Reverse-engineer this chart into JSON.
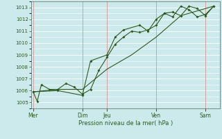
{
  "xlabel": "Pression niveau de la mer( hPa )",
  "bg_color": "#cceaec",
  "grid_color": "#ffffff",
  "line_color": "#2d5a1b",
  "vline_color": "#d4a0a0",
  "ylim": [
    1004.5,
    1013.5
  ],
  "yticks": [
    1005,
    1006,
    1007,
    1008,
    1009,
    1010,
    1011,
    1012,
    1013
  ],
  "day_labels": [
    "Mer",
    "Dim",
    "Jeu",
    "Ven",
    "Sam"
  ],
  "day_positions": [
    0,
    12,
    18,
    30,
    42
  ],
  "xlim": [
    -0.5,
    45.5
  ],
  "series1_x": [
    0,
    1,
    2,
    4,
    6,
    8,
    10,
    12,
    14,
    16,
    18,
    20,
    22,
    24,
    26,
    28,
    30,
    32,
    34,
    36,
    38,
    40,
    42,
    44
  ],
  "series1_y": [
    1005.9,
    1005.1,
    1006.5,
    1006.1,
    1006.1,
    1006.6,
    1006.3,
    1005.7,
    1006.1,
    1007.7,
    1008.8,
    1009.9,
    1010.5,
    1011.0,
    1010.9,
    1011.1,
    1011.5,
    1012.5,
    1012.6,
    1012.3,
    1013.1,
    1012.9,
    1012.3,
    1013.1
  ],
  "series2_x": [
    0,
    6,
    12,
    18,
    24,
    30,
    36,
    42,
    44
  ],
  "series2_y": [
    1005.9,
    1006.1,
    1006.1,
    1007.8,
    1009.0,
    1010.5,
    1012.3,
    1012.9,
    1013.1
  ],
  "series3_x": [
    0,
    6,
    12,
    14,
    18,
    20,
    22,
    26,
    28,
    30,
    32,
    34,
    36,
    38,
    40,
    42,
    44
  ],
  "series3_y": [
    1005.9,
    1006.0,
    1005.6,
    1008.5,
    1009.0,
    1010.5,
    1011.1,
    1011.5,
    1011.0,
    1012.0,
    1012.5,
    1012.2,
    1013.1,
    1012.8,
    1012.2,
    1012.4,
    1013.1
  ]
}
